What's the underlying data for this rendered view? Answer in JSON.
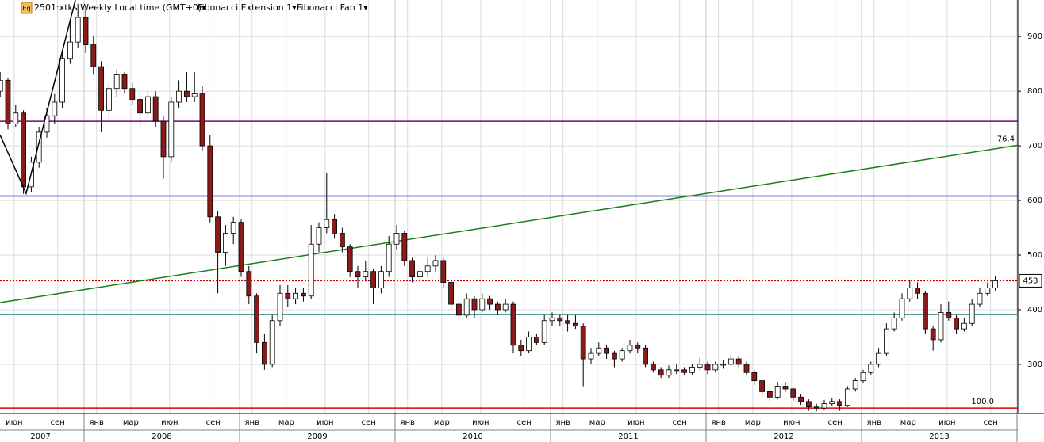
{
  "chart_data": {
    "type": "candlestick",
    "header": {
      "icon": "Eq",
      "symbol": "2501:xtks Weekly Local time (GMT+0)▾",
      "tool1": "Fibonacci Extension 1▾",
      "tool2": "Fibonacci Fan 1▾"
    },
    "xlim": [
      2007.459,
      2014.005
    ],
    "ylim": [
      210,
      967
    ],
    "yticks": [
      300,
      400,
      500,
      600,
      700,
      800,
      900
    ],
    "grid": true,
    "xgrid": [
      2008,
      2009,
      2010,
      2011,
      2012,
      2013,
      2014
    ],
    "xticks": [
      {
        "value": 2007.55,
        "label": "июн"
      },
      {
        "value": 2007.83,
        "label": "сен"
      },
      {
        "value": 2008.08,
        "label": "янв"
      },
      {
        "value": 2008.3,
        "label": "мар"
      },
      {
        "value": 2008.55,
        "label": "июн"
      },
      {
        "value": 2008.83,
        "label": "сен"
      },
      {
        "value": 2009.08,
        "label": "янв"
      },
      {
        "value": 2009.3,
        "label": "мар"
      },
      {
        "value": 2009.55,
        "label": "июн"
      },
      {
        "value": 2009.83,
        "label": "сен"
      },
      {
        "value": 2010.08,
        "label": "янв"
      },
      {
        "value": 2010.3,
        "label": "мар"
      },
      {
        "value": 2010.55,
        "label": "июн"
      },
      {
        "value": 2010.83,
        "label": "сен"
      },
      {
        "value": 2011.08,
        "label": "янв"
      },
      {
        "value": 2011.3,
        "label": "мар"
      },
      {
        "value": 2011.55,
        "label": "июн"
      },
      {
        "value": 2011.83,
        "label": "сен"
      },
      {
        "value": 2012.08,
        "label": "янв"
      },
      {
        "value": 2012.3,
        "label": "мар"
      },
      {
        "value": 2012.55,
        "label": "июн"
      },
      {
        "value": 2012.83,
        "label": "сен"
      },
      {
        "value": 2013.08,
        "label": "янв"
      },
      {
        "value": 2013.3,
        "label": "мар"
      },
      {
        "value": 2013.55,
        "label": "июн"
      },
      {
        "value": 2013.83,
        "label": "сен"
      }
    ],
    "year_ticks": [
      {
        "value": 2007.72,
        "label": "2007"
      },
      {
        "value": 2008.5,
        "label": "2008"
      },
      {
        "value": 2009.5,
        "label": "2009"
      },
      {
        "value": 2010.5,
        "label": "2010"
      },
      {
        "value": 2011.5,
        "label": "2011"
      },
      {
        "value": 2012.5,
        "label": "2012"
      },
      {
        "value": 2013.5,
        "label": "2013"
      }
    ],
    "up_color": "#ffffff",
    "down_color": "#8b1a1a",
    "levels": [
      {
        "value": 745,
        "color": "#800080"
      },
      {
        "value": 608,
        "color": "#0000c0"
      },
      {
        "value": 453,
        "color": "#c00000",
        "dotted": true
      },
      {
        "value": 391,
        "color": "#5a9a9a"
      },
      {
        "value": 220,
        "color": "#e00000",
        "label": "100.0"
      }
    ],
    "fan": {
      "start": [
        2007.459,
        413
      ],
      "end": [
        2014.005,
        701
      ],
      "label": "76.4",
      "color": "#1a7f1a"
    },
    "extension": [
      [
        2007.459,
        720
      ],
      [
        2007.627,
        613
      ],
      [
        2007.944,
        967
      ]
    ],
    "candles": [
      [
        2007.46,
        800,
        835,
        790,
        820
      ],
      [
        2007.51,
        820,
        825,
        730,
        740
      ],
      [
        2007.56,
        740,
        775,
        735,
        760
      ],
      [
        2007.61,
        760,
        765,
        612,
        625
      ],
      [
        2007.66,
        625,
        680,
        615,
        670
      ],
      [
        2007.71,
        670,
        735,
        660,
        725
      ],
      [
        2007.76,
        725,
        770,
        715,
        755
      ],
      [
        2007.81,
        755,
        795,
        740,
        780
      ],
      [
        2007.86,
        780,
        875,
        770,
        860
      ],
      [
        2007.91,
        860,
        930,
        850,
        890
      ],
      [
        2007.96,
        890,
        960,
        880,
        935
      ],
      [
        2008.01,
        935,
        950,
        870,
        885
      ],
      [
        2008.06,
        885,
        900,
        830,
        845
      ],
      [
        2008.11,
        845,
        855,
        725,
        765
      ],
      [
        2008.16,
        765,
        815,
        750,
        805
      ],
      [
        2008.21,
        805,
        840,
        790,
        830
      ],
      [
        2008.26,
        830,
        835,
        795,
        805
      ],
      [
        2008.31,
        805,
        815,
        775,
        785
      ],
      [
        2008.36,
        785,
        795,
        735,
        760
      ],
      [
        2008.41,
        760,
        800,
        750,
        790
      ],
      [
        2008.46,
        790,
        800,
        735,
        745
      ],
      [
        2008.51,
        745,
        755,
        640,
        680
      ],
      [
        2008.56,
        680,
        790,
        670,
        780
      ],
      [
        2008.61,
        780,
        820,
        770,
        800
      ],
      [
        2008.66,
        800,
        835,
        780,
        790
      ],
      [
        2008.71,
        790,
        835,
        780,
        795
      ],
      [
        2008.76,
        795,
        810,
        690,
        700
      ],
      [
        2008.81,
        700,
        720,
        560,
        570
      ],
      [
        2008.86,
        570,
        580,
        430,
        505
      ],
      [
        2008.91,
        505,
        555,
        480,
        540
      ],
      [
        2008.96,
        540,
        570,
        520,
        560
      ],
      [
        2009.01,
        560,
        565,
        460,
        470
      ],
      [
        2009.06,
        470,
        480,
        410,
        425
      ],
      [
        2009.11,
        425,
        430,
        320,
        340
      ],
      [
        2009.16,
        340,
        355,
        290,
        300
      ],
      [
        2009.21,
        300,
        390,
        295,
        380
      ],
      [
        2009.26,
        380,
        445,
        370,
        430
      ],
      [
        2009.31,
        430,
        445,
        405,
        420
      ],
      [
        2009.36,
        420,
        440,
        410,
        430
      ],
      [
        2009.41,
        430,
        440,
        415,
        425
      ],
      [
        2009.46,
        425,
        555,
        420,
        520
      ],
      [
        2009.51,
        520,
        560,
        505,
        550
      ],
      [
        2009.56,
        550,
        650,
        540,
        565
      ],
      [
        2009.61,
        565,
        575,
        530,
        540
      ],
      [
        2009.66,
        540,
        550,
        505,
        515
      ],
      [
        2009.71,
        515,
        520,
        460,
        470
      ],
      [
        2009.76,
        470,
        480,
        440,
        460
      ],
      [
        2009.81,
        460,
        490,
        455,
        470
      ],
      [
        2009.86,
        470,
        475,
        410,
        440
      ],
      [
        2009.91,
        440,
        480,
        430,
        470
      ],
      [
        2009.96,
        470,
        535,
        460,
        520
      ],
      [
        2010.01,
        520,
        555,
        510,
        540
      ],
      [
        2010.06,
        540,
        545,
        480,
        490
      ],
      [
        2010.11,
        490,
        495,
        450,
        460
      ],
      [
        2010.16,
        460,
        480,
        450,
        470
      ],
      [
        2010.21,
        470,
        495,
        460,
        480
      ],
      [
        2010.26,
        480,
        500,
        470,
        490
      ],
      [
        2010.31,
        490,
        495,
        440,
        450
      ],
      [
        2010.36,
        450,
        455,
        400,
        410
      ],
      [
        2010.41,
        410,
        415,
        380,
        390
      ],
      [
        2010.46,
        390,
        430,
        385,
        420
      ],
      [
        2010.51,
        420,
        425,
        385,
        400
      ],
      [
        2010.56,
        400,
        430,
        395,
        420
      ],
      [
        2010.61,
        420,
        425,
        400,
        410
      ],
      [
        2010.66,
        410,
        415,
        390,
        400
      ],
      [
        2010.71,
        400,
        420,
        395,
        410
      ],
      [
        2010.76,
        410,
        415,
        320,
        335
      ],
      [
        2010.81,
        335,
        345,
        315,
        325
      ],
      [
        2010.86,
        325,
        360,
        320,
        350
      ],
      [
        2010.91,
        350,
        355,
        335,
        340
      ],
      [
        2010.96,
        340,
        390,
        335,
        380
      ],
      [
        2011.01,
        380,
        395,
        370,
        385
      ],
      [
        2011.06,
        385,
        390,
        370,
        380
      ],
      [
        2011.11,
        380,
        390,
        360,
        375
      ],
      [
        2011.16,
        375,
        390,
        365,
        370
      ],
      [
        2011.21,
        370,
        375,
        260,
        310
      ],
      [
        2011.26,
        310,
        330,
        300,
        320
      ],
      [
        2011.31,
        320,
        340,
        315,
        330
      ],
      [
        2011.36,
        330,
        335,
        310,
        320
      ],
      [
        2011.41,
        320,
        325,
        295,
        310
      ],
      [
        2011.46,
        310,
        330,
        305,
        325
      ],
      [
        2011.51,
        325,
        345,
        320,
        335
      ],
      [
        2011.56,
        335,
        340,
        320,
        330
      ],
      [
        2011.61,
        330,
        335,
        295,
        300
      ],
      [
        2011.66,
        300,
        305,
        285,
        290
      ],
      [
        2011.71,
        290,
        295,
        275,
        280
      ],
      [
        2011.76,
        280,
        298,
        275,
        290
      ],
      [
        2011.81,
        290,
        300,
        282,
        290
      ],
      [
        2011.86,
        290,
        295,
        280,
        285
      ],
      [
        2011.91,
        285,
        300,
        280,
        295
      ],
      [
        2011.96,
        295,
        312,
        290,
        300
      ],
      [
        2012.01,
        300,
        305,
        282,
        290
      ],
      [
        2012.06,
        290,
        305,
        285,
        300
      ],
      [
        2012.11,
        300,
        308,
        292,
        300
      ],
      [
        2012.16,
        300,
        318,
        296,
        310
      ],
      [
        2012.21,
        310,
        315,
        295,
        300
      ],
      [
        2012.26,
        300,
        305,
        280,
        285
      ],
      [
        2012.31,
        285,
        290,
        262,
        270
      ],
      [
        2012.36,
        270,
        275,
        240,
        250
      ],
      [
        2012.41,
        250,
        255,
        232,
        240
      ],
      [
        2012.46,
        240,
        268,
        236,
        260
      ],
      [
        2012.51,
        260,
        268,
        250,
        255
      ],
      [
        2012.56,
        255,
        258,
        234,
        240
      ],
      [
        2012.61,
        240,
        245,
        226,
        232
      ],
      [
        2012.66,
        232,
        236,
        215,
        222
      ],
      [
        2012.71,
        222,
        228,
        214,
        220
      ],
      [
        2012.76,
        220,
        235,
        216,
        228
      ],
      [
        2012.81,
        228,
        238,
        224,
        232
      ],
      [
        2012.86,
        232,
        236,
        215,
        225
      ],
      [
        2012.91,
        225,
        260,
        222,
        255
      ],
      [
        2012.96,
        255,
        275,
        250,
        270
      ],
      [
        2013.01,
        270,
        290,
        265,
        285
      ],
      [
        2013.06,
        285,
        305,
        280,
        300
      ],
      [
        2013.11,
        300,
        330,
        295,
        320
      ],
      [
        2013.16,
        320,
        375,
        315,
        365
      ],
      [
        2013.21,
        365,
        395,
        360,
        385
      ],
      [
        2013.26,
        385,
        430,
        380,
        420
      ],
      [
        2013.31,
        420,
        455,
        415,
        440
      ],
      [
        2013.36,
        440,
        450,
        420,
        430
      ],
      [
        2013.41,
        430,
        435,
        355,
        365
      ],
      [
        2013.46,
        365,
        370,
        325,
        345
      ],
      [
        2013.51,
        345,
        410,
        340,
        395
      ],
      [
        2013.56,
        395,
        415,
        380,
        385
      ],
      [
        2013.61,
        385,
        390,
        355,
        365
      ],
      [
        2013.66,
        365,
        385,
        360,
        375
      ],
      [
        2013.71,
        375,
        420,
        370,
        410
      ],
      [
        2013.76,
        410,
        440,
        405,
        430
      ],
      [
        2013.81,
        430,
        450,
        425,
        440
      ],
      [
        2013.86,
        440,
        462,
        435,
        453
      ]
    ]
  }
}
